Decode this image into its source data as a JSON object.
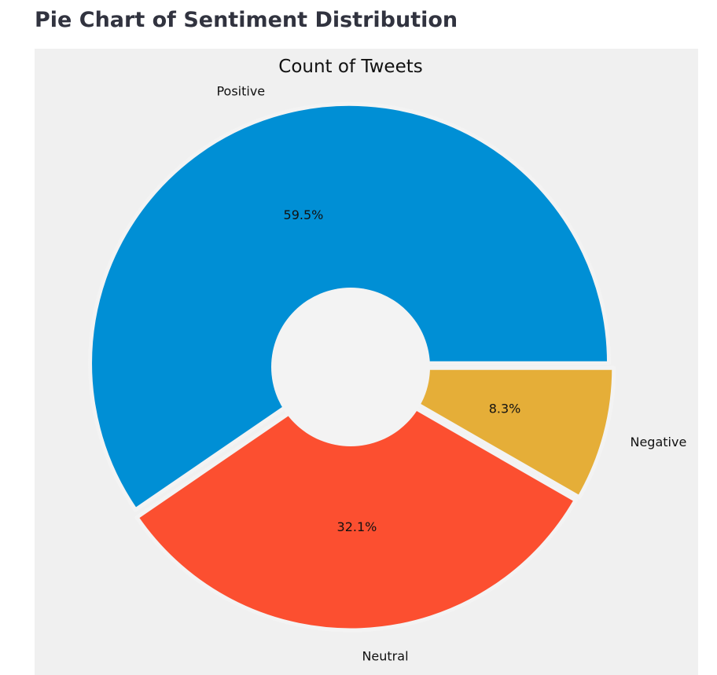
{
  "page": {
    "heading": "Pie Chart of Sentiment Distribution"
  },
  "chart_data": {
    "type": "pie",
    "title": "Count of Tweets",
    "categories": [
      "Positive",
      "Neutral",
      "Negative"
    ],
    "values": [
      59.5,
      32.1,
      8.3
    ],
    "value_labels": [
      "59.5%",
      "32.1%",
      "8.3%"
    ],
    "colors": [
      "#008fd5",
      "#fc4f30",
      "#e5ae38"
    ],
    "background": "#f0f0f0",
    "hole_color": "#f3f3f3",
    "donut": true,
    "exploded": true,
    "start_angle_deg": 0,
    "direction": "counterclockwise",
    "legend": "none",
    "grid": false
  }
}
